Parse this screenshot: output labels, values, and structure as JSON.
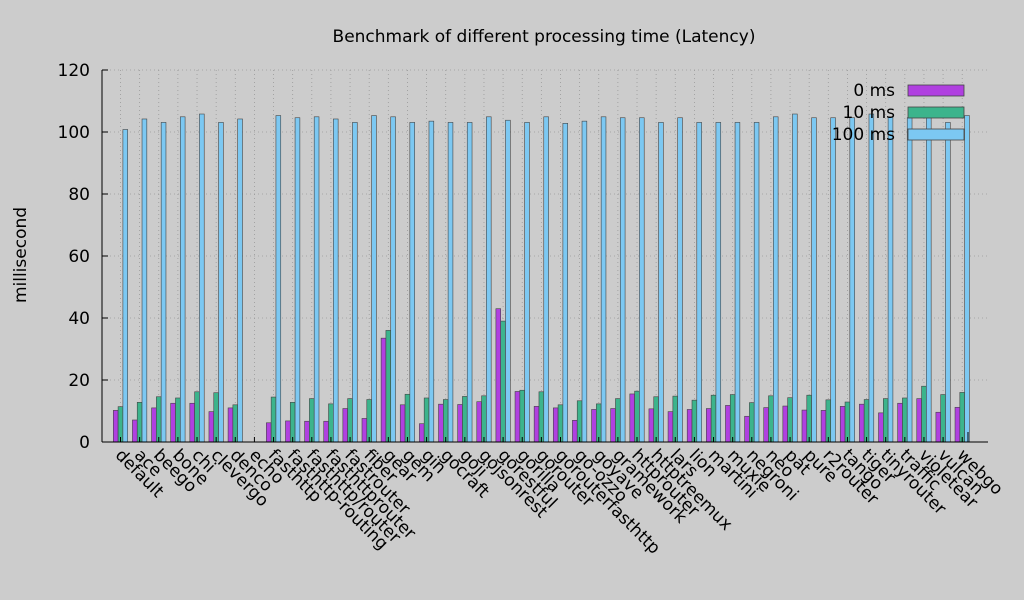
{
  "chart_data": {
    "type": "bar",
    "title": "Benchmark of different processing time (Latency)",
    "ylabel": "millisecond",
    "xlabel": "",
    "ylim": [
      0,
      120
    ],
    "yticks": [
      0,
      20,
      40,
      60,
      80,
      100,
      120
    ],
    "grid": true,
    "legend_position": "top-right",
    "categories": [
      "default",
      "ace",
      "beego",
      "bone",
      "chi",
      "clevergo",
      "denco",
      "echo",
      "fasthttp",
      "fasthttp-routing",
      "fasthttp/router",
      "fasthttprouter",
      "fastrouter",
      "fiber",
      "gear",
      "gem",
      "gin",
      "gocraft",
      "goji",
      "gojsonrest",
      "gorestful",
      "gorilla",
      "gorouter",
      "gorouterfasthttp",
      "go-ozzo",
      "goyave",
      "gramework",
      "httprouter",
      "httptreemux",
      "lars",
      "lion",
      "martini",
      "muxie",
      "negroni",
      "neo",
      "pat",
      "pure",
      "r2router",
      "tango",
      "tiger",
      "tinyrouter",
      "traffic",
      "violetear",
      "vulcan",
      "webgo"
    ],
    "series": [
      {
        "name": "0 ms",
        "color": "#b040e0",
        "values": [
          10.2,
          7.1,
          11.0,
          12.5,
          12.5,
          9.8,
          11.0,
          0,
          6.2,
          6.8,
          6.7,
          6.7,
          10.8,
          7.6,
          33.5,
          12.0,
          5.9,
          12.2,
          12.1,
          13.0,
          43.0,
          16.3,
          11.5,
          11.0,
          7.0,
          10.5,
          10.8,
          15.5,
          10.7,
          9.8,
          10.5,
          10.8,
          11.8,
          8.3,
          11.1,
          11.6,
          10.3,
          10.2,
          11.5,
          12.2,
          9.4,
          12.5,
          14.0,
          9.6,
          11.2
        ]
      },
      {
        "name": "10 ms",
        "color": "#3cb48c",
        "values": [
          11.4,
          12.8,
          14.6,
          14.2,
          16.2,
          15.9,
          12.0,
          0,
          14.5,
          12.8,
          14.0,
          12.3,
          14.0,
          13.7,
          36.0,
          15.4,
          14.2,
          13.7,
          14.7,
          14.9,
          39.0,
          16.7,
          16.2,
          12.0,
          13.3,
          12.3,
          14.0,
          16.4,
          14.6,
          14.8,
          13.5,
          15.1,
          15.3,
          12.7,
          14.9,
          14.3,
          15.1,
          13.6,
          12.9,
          13.7,
          14.0,
          14.2,
          18.0,
          15.3,
          16.0
        ]
      },
      {
        "name": "100 ms",
        "color": "#7cc8f2",
        "values": [
          100.8,
          104.2,
          103.1,
          104.9,
          105.8,
          103.1,
          104.2,
          0,
          105.3,
          104.6,
          104.9,
          104.2,
          103.1,
          105.3,
          104.9,
          103.1,
          103.5,
          103.1,
          103.1,
          104.9,
          103.8,
          103.1,
          104.9,
          102.8,
          103.5,
          104.9,
          104.6,
          104.6,
          103.1,
          104.6,
          103.1,
          103.1,
          103.1,
          103.1,
          104.9,
          105.8,
          104.6,
          104.6,
          104.6,
          105.8,
          104.9,
          104.6,
          104.6,
          103.1,
          105.3
        ]
      }
    ]
  }
}
